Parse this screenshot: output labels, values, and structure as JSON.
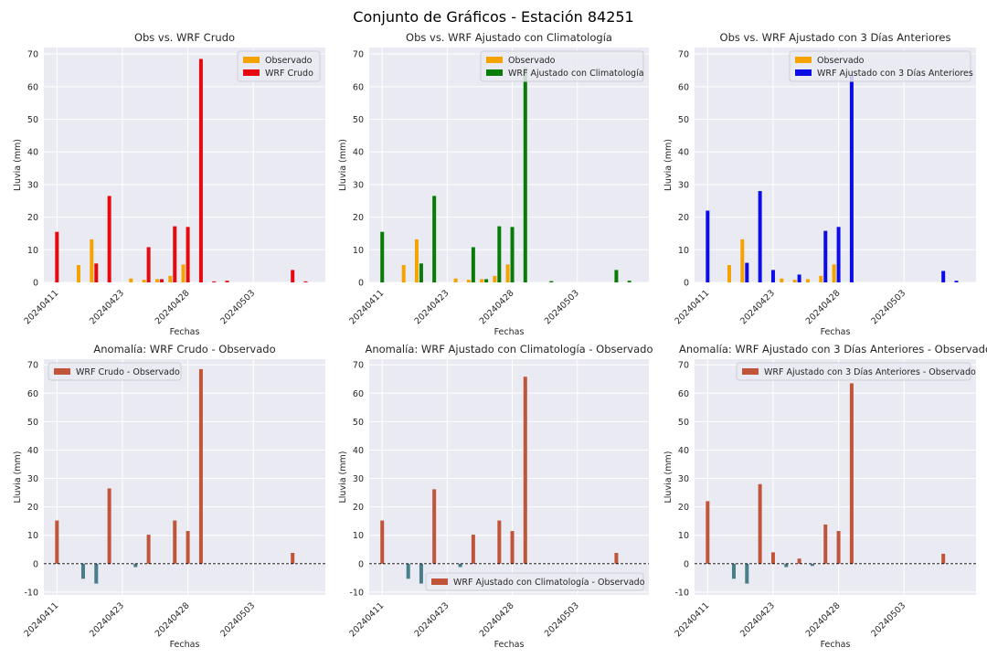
{
  "figure_title": "Conjunto de Gráficos - Estación 84251",
  "colors": {
    "observado": "#f5a301",
    "crudo": "#e6090f",
    "clima": "#097b07",
    "dias": "#0c0ce6",
    "positive": "#c0553a",
    "negative": "#477e8a",
    "panel_bg": "#eaeaf2",
    "grid": "#ffffff"
  },
  "chart_data": [
    {
      "type": "bar",
      "title": "Obs vs. WRF Crudo",
      "xlabel": "Fechas",
      "ylabel": "Lluvia (mm)",
      "ylim": [
        0,
        72
      ],
      "yticks": [
        0,
        10,
        20,
        30,
        40,
        50,
        60,
        70
      ],
      "xticks": [
        {
          "x": 0,
          "label": "20240411"
        },
        {
          "x": 5,
          "label": "20240423"
        },
        {
          "x": 10,
          "label": "20240428"
        },
        {
          "x": 15,
          "label": "20240503"
        }
      ],
      "legend": "top-right",
      "series": [
        {
          "name": "Observado",
          "color_key": "observado",
          "points": [
            [
              2,
              5.3
            ],
            [
              3,
              13.2
            ],
            [
              6,
              1.2
            ],
            [
              7,
              0.8
            ],
            [
              8,
              1.0
            ],
            [
              9,
              2.0
            ],
            [
              10,
              5.5
            ]
          ]
        },
        {
          "name": "WRF Crudo",
          "color_key": "crudo",
          "points": [
            [
              0,
              15.5
            ],
            [
              3,
              5.8
            ],
            [
              4,
              26.5
            ],
            [
              7,
              10.8
            ],
            [
              8,
              1.0
            ],
            [
              9,
              17.2
            ],
            [
              10,
              17.0
            ],
            [
              11,
              68.5
            ],
            [
              12,
              0.3
            ],
            [
              13,
              0.5
            ],
            [
              18,
              3.8
            ],
            [
              19,
              0.3
            ]
          ]
        }
      ]
    },
    {
      "type": "bar",
      "title": "Obs vs. WRF Ajustado con Climatología",
      "xlabel": "Fechas",
      "ylabel": "Lluvia (mm)",
      "ylim": [
        0,
        72
      ],
      "yticks": [
        0,
        10,
        20,
        30,
        40,
        50,
        60,
        70
      ],
      "xticks": [
        {
          "x": 0,
          "label": "20240411"
        },
        {
          "x": 5,
          "label": "20240423"
        },
        {
          "x": 10,
          "label": "20240428"
        },
        {
          "x": 15,
          "label": "20240503"
        }
      ],
      "legend": "top-right",
      "series": [
        {
          "name": "Observado",
          "color_key": "observado",
          "points": [
            [
              2,
              5.3
            ],
            [
              3,
              13.2
            ],
            [
              6,
              1.2
            ],
            [
              7,
              0.8
            ],
            [
              8,
              1.0
            ],
            [
              9,
              2.0
            ],
            [
              10,
              5.5
            ]
          ]
        },
        {
          "name": "WRF Ajustado con Climatología",
          "color_key": "clima",
          "points": [
            [
              0,
              15.5
            ],
            [
              3,
              5.8
            ],
            [
              4,
              26.5
            ],
            [
              7,
              10.8
            ],
            [
              8,
              1.0
            ],
            [
              9,
              17.2
            ],
            [
              10,
              17.0
            ],
            [
              11,
              65.8
            ],
            [
              13,
              0.4
            ],
            [
              18,
              3.8
            ],
            [
              19,
              0.5
            ]
          ]
        }
      ]
    },
    {
      "type": "bar",
      "title": "Obs vs. WRF Ajustado con 3 Días Anteriores",
      "xlabel": "Fechas",
      "ylabel": "Lluvia (mm)",
      "ylim": [
        0,
        72
      ],
      "yticks": [
        0,
        10,
        20,
        30,
        40,
        50,
        60,
        70
      ],
      "xticks": [
        {
          "x": 0,
          "label": "20240411"
        },
        {
          "x": 5,
          "label": "20240423"
        },
        {
          "x": 10,
          "label": "20240428"
        },
        {
          "x": 15,
          "label": "20240503"
        }
      ],
      "legend": "top-right",
      "series": [
        {
          "name": "Observado",
          "color_key": "observado",
          "points": [
            [
              2,
              5.3
            ],
            [
              3,
              13.2
            ],
            [
              6,
              1.2
            ],
            [
              7,
              0.8
            ],
            [
              8,
              1.0
            ],
            [
              9,
              2.0
            ],
            [
              10,
              5.5
            ]
          ]
        },
        {
          "name": "WRF Ajustado con 3 Días Anteriores",
          "color_key": "dias",
          "points": [
            [
              0,
              22.0
            ],
            [
              3,
              6.0
            ],
            [
              4,
              28.0
            ],
            [
              5,
              3.8
            ],
            [
              7,
              2.4
            ],
            [
              9,
              15.8
            ],
            [
              10,
              17.0
            ],
            [
              11,
              63.5
            ],
            [
              18,
              3.5
            ],
            [
              19,
              0.5
            ]
          ]
        }
      ]
    },
    {
      "type": "bar",
      "title": "Anomalía: WRF Crudo - Observado",
      "xlabel": "Fechas",
      "ylabel": "Lluvia (mm)",
      "ylim": [
        -11,
        72
      ],
      "yticks": [
        -10,
        0,
        10,
        20,
        30,
        40,
        50,
        60,
        70
      ],
      "xticks": [
        {
          "x": 0,
          "label": "20240411"
        },
        {
          "x": 5,
          "label": "20240423"
        },
        {
          "x": 10,
          "label": "20240428"
        },
        {
          "x": 15,
          "label": "20240503"
        }
      ],
      "legend": "top-left",
      "legend_label": "WRF Crudo - Observado",
      "values": [
        [
          0,
          15.2
        ],
        [
          2,
          -5.3
        ],
        [
          3,
          -7.0
        ],
        [
          4,
          26.5
        ],
        [
          6,
          -1.2
        ],
        [
          7,
          10.2
        ],
        [
          9,
          15.2
        ],
        [
          10,
          11.5
        ],
        [
          11,
          68.5
        ],
        [
          18,
          3.8
        ]
      ]
    },
    {
      "type": "bar",
      "title": "Anomalía: WRF Ajustado con Climatología - Observado",
      "xlabel": "Fechas",
      "ylabel": "Lluvia (mm)",
      "ylim": [
        -11,
        72
      ],
      "yticks": [
        -10,
        0,
        10,
        20,
        30,
        40,
        50,
        60,
        70
      ],
      "xticks": [
        {
          "x": 0,
          "label": "20240411"
        },
        {
          "x": 5,
          "label": "20240423"
        },
        {
          "x": 10,
          "label": "20240428"
        },
        {
          "x": 15,
          "label": "20240503"
        }
      ],
      "legend": "bottom-right",
      "legend_label": "WRF Ajustado con Climatología - Observado",
      "values": [
        [
          0,
          15.2
        ],
        [
          2,
          -5.3
        ],
        [
          3,
          -7.0
        ],
        [
          4,
          26.2
        ],
        [
          6,
          -1.2
        ],
        [
          7,
          10.2
        ],
        [
          9,
          15.2
        ],
        [
          10,
          11.5
        ],
        [
          11,
          65.8
        ],
        [
          18,
          3.8
        ]
      ]
    },
    {
      "type": "bar",
      "title": "Anomalía: WRF Ajustado con 3 Días Anteriores - Observado",
      "xlabel": "Fechas",
      "ylabel": "Lluvia (mm)",
      "ylim": [
        -11,
        72
      ],
      "yticks": [
        -10,
        0,
        10,
        20,
        30,
        40,
        50,
        60,
        70
      ],
      "xticks": [
        {
          "x": 0,
          "label": "20240411"
        },
        {
          "x": 5,
          "label": "20240423"
        },
        {
          "x": 10,
          "label": "20240428"
        },
        {
          "x": 15,
          "label": "20240503"
        }
      ],
      "legend": "top-right",
      "legend_label": "WRF Ajustado con 3 Días Anteriores - Observado",
      "values": [
        [
          0,
          22.0
        ],
        [
          2,
          -5.3
        ],
        [
          3,
          -7.0
        ],
        [
          4,
          28.0
        ],
        [
          5,
          4.0
        ],
        [
          6,
          -1.2
        ],
        [
          7,
          1.8
        ],
        [
          8,
          -0.8
        ],
        [
          9,
          13.8
        ],
        [
          10,
          11.5
        ],
        [
          11,
          63.5
        ],
        [
          18,
          3.5
        ]
      ]
    }
  ]
}
